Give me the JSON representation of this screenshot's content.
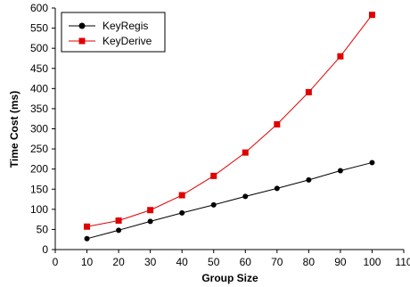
{
  "chart_data": {
    "type": "line",
    "xlabel": "Group Size",
    "ylabel": "Time Cost (ms)",
    "xlim": [
      0,
      110
    ],
    "ylim": [
      0,
      600
    ],
    "x_ticks": [
      0,
      10,
      20,
      30,
      40,
      50,
      60,
      70,
      80,
      90,
      100,
      110
    ],
    "y_ticks": [
      0,
      50,
      100,
      150,
      200,
      250,
      300,
      350,
      400,
      450,
      500,
      550,
      600
    ],
    "grid": false,
    "legend_position": "top-left",
    "x": [
      10,
      20,
      30,
      40,
      50,
      60,
      70,
      80,
      90,
      100
    ],
    "series": [
      {
        "name": "KeyRegis",
        "color": "#000000",
        "marker": "circle",
        "values": [
          27,
          48,
          70,
          91,
          111,
          132,
          152,
          173,
          196,
          216
        ]
      },
      {
        "name": "KeyDerive",
        "color": "#e00000",
        "marker": "square",
        "values": [
          57,
          72,
          98,
          135,
          183,
          241,
          311,
          391,
          480,
          583
        ]
      }
    ]
  }
}
